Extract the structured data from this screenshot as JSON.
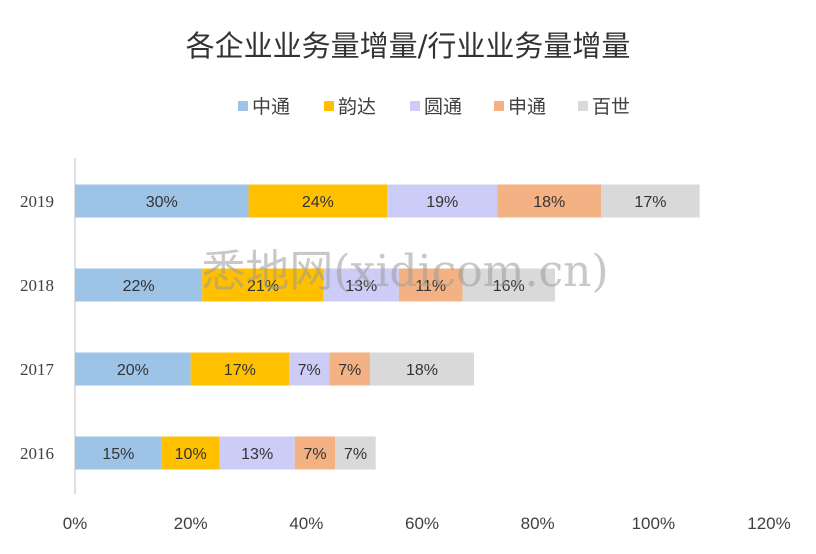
{
  "chart_data": {
    "type": "bar",
    "orientation": "horizontal",
    "stacked": true,
    "title": "各企业业务量增量/行业业务量增量",
    "categories": [
      "2019",
      "2018",
      "2017",
      "2016"
    ],
    "series": [
      {
        "name": "中通",
        "color": "#9DC3E6",
        "values": [
          30,
          22,
          20,
          15
        ]
      },
      {
        "name": "韵达",
        "color": "#FFC000",
        "values": [
          24,
          21,
          17,
          10
        ]
      },
      {
        "name": "圆通",
        "color": "#CDCCF7",
        "values": [
          19,
          13,
          7,
          13
        ]
      },
      {
        "name": "申通",
        "color": "#F4B183",
        "values": [
          18,
          11,
          7,
          7
        ]
      },
      {
        "name": "百世",
        "color": "#D9D9D9",
        "values": [
          17,
          16,
          18,
          7
        ]
      }
    ],
    "value_format": "percent",
    "xlim": [
      0,
      120
    ],
    "xticks": [
      "0%",
      "20%",
      "40%",
      "60%",
      "80%",
      "100%",
      "120%"
    ],
    "legend_position": "top",
    "grid": false
  },
  "watermark": "悉地网(xidicom.cn)"
}
